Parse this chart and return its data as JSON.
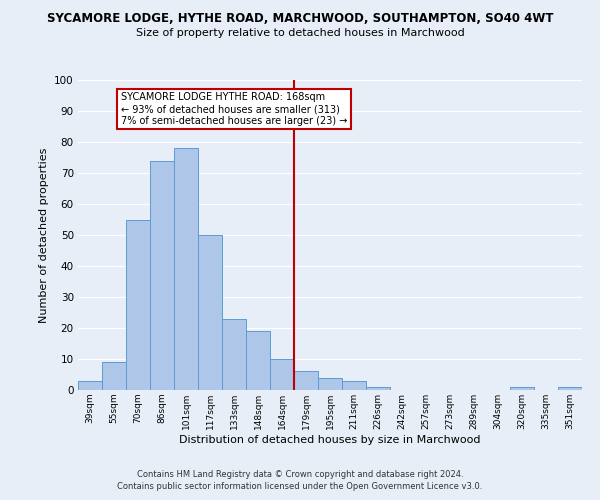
{
  "title": "SYCAMORE LODGE, HYTHE ROAD, MARCHWOOD, SOUTHAMPTON, SO40 4WT",
  "subtitle": "Size of property relative to detached houses in Marchwood",
  "xlabel": "Distribution of detached houses by size in Marchwood",
  "ylabel": "Number of detached properties",
  "bin_labels": [
    "39sqm",
    "55sqm",
    "70sqm",
    "86sqm",
    "101sqm",
    "117sqm",
    "133sqm",
    "148sqm",
    "164sqm",
    "179sqm",
    "195sqm",
    "211sqm",
    "226sqm",
    "242sqm",
    "257sqm",
    "273sqm",
    "289sqm",
    "304sqm",
    "320sqm",
    "335sqm",
    "351sqm"
  ],
  "bar_heights": [
    3,
    9,
    55,
    74,
    78,
    50,
    23,
    19,
    10,
    6,
    4,
    3,
    1,
    0,
    0,
    0,
    0,
    0,
    1,
    0,
    1
  ],
  "bar_color": "#aec6e8",
  "bar_edge_color": "#5b9bd5",
  "vline_x": 8.5,
  "vline_color": "#c00000",
  "annotation_title": "SYCAMORE LODGE HYTHE ROAD: 168sqm",
  "annotation_line1": "← 93% of detached houses are smaller (313)",
  "annotation_line2": "7% of semi-detached houses are larger (23) →",
  "annotation_box_color": "#c00000",
  "ylim": [
    0,
    100
  ],
  "yticks": [
    0,
    10,
    20,
    30,
    40,
    50,
    60,
    70,
    80,
    90,
    100
  ],
  "background_color": "#e8eef8",
  "grid_color": "#ffffff",
  "footer1": "Contains HM Land Registry data © Crown copyright and database right 2024.",
  "footer2": "Contains public sector information licensed under the Open Government Licence v3.0."
}
